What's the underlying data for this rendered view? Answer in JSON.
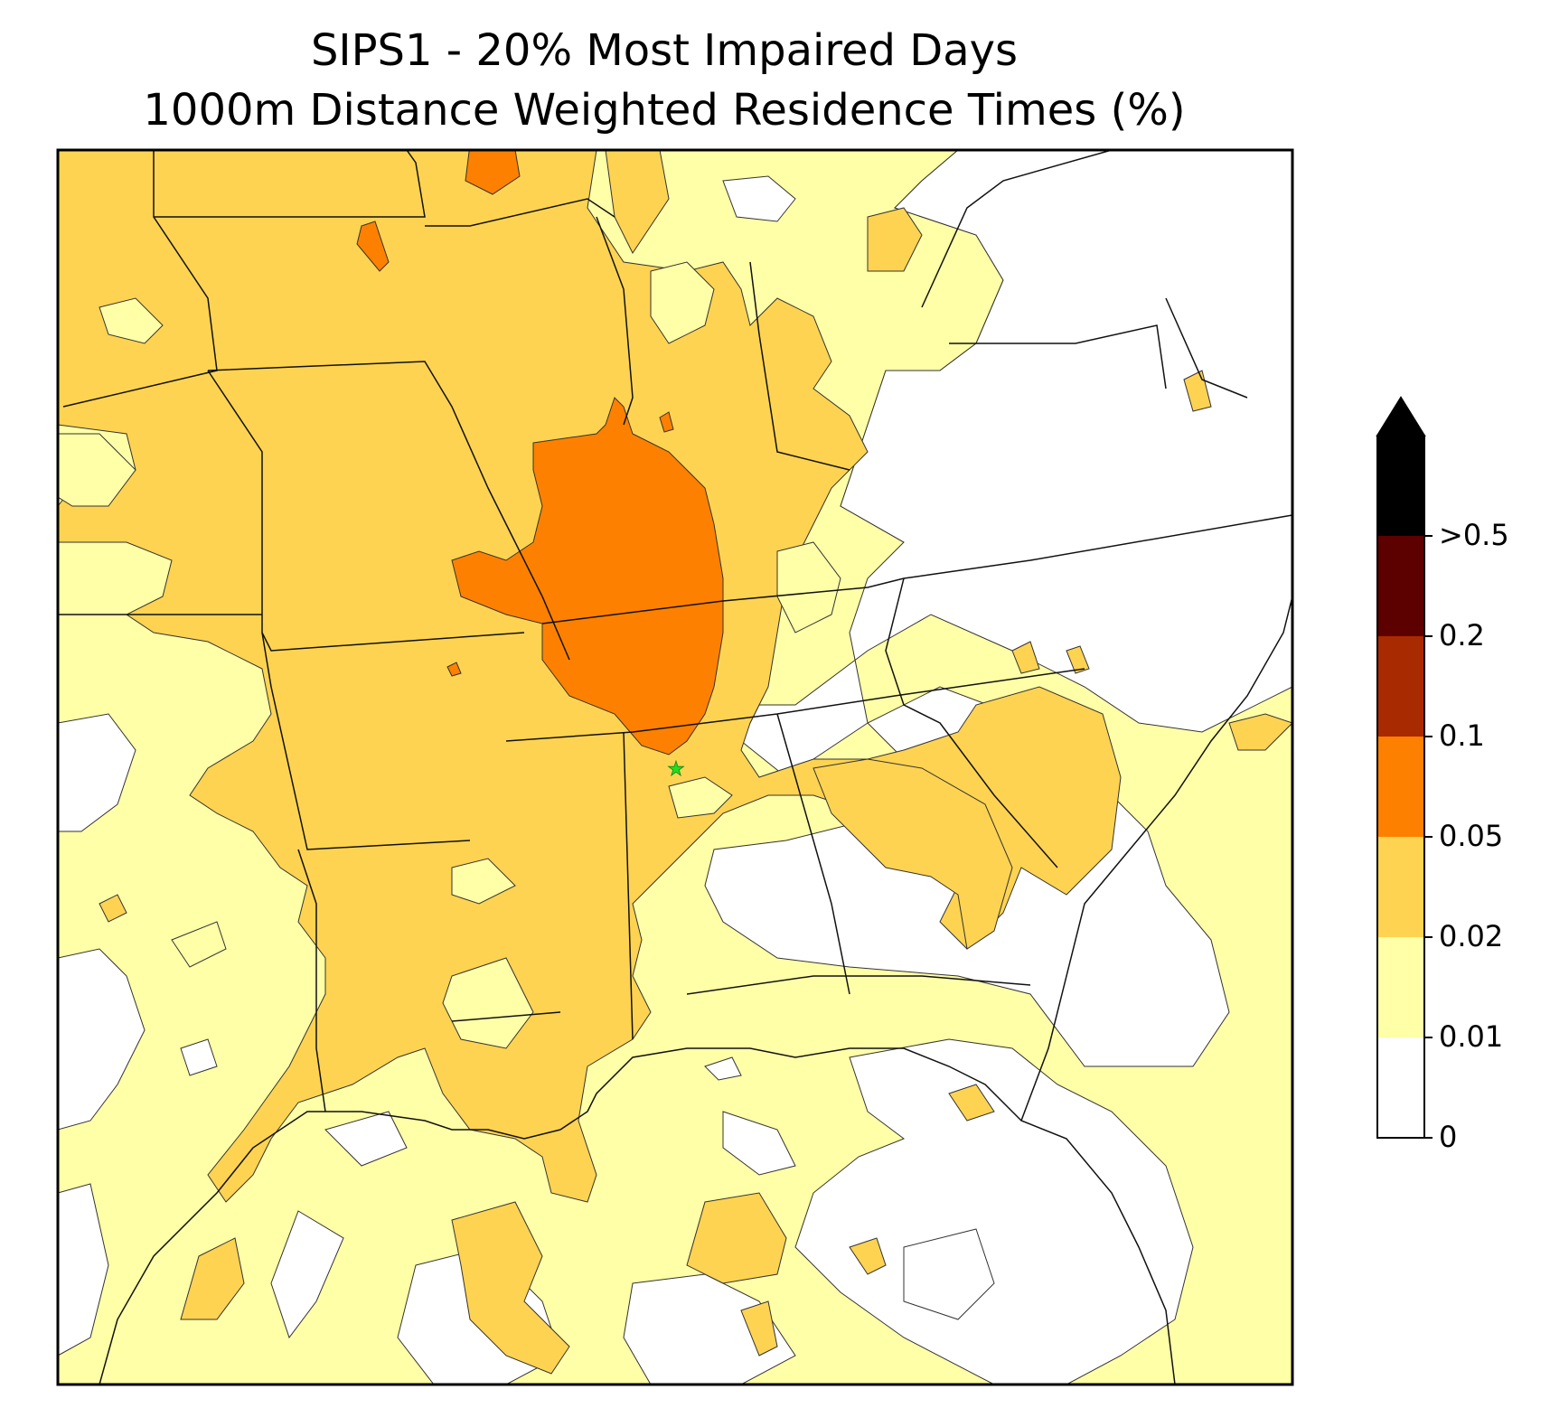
{
  "title_line1": "SIPS1 - 20% Most Impaired Days",
  "title_line2": "1000m Distance Weighted Residence Times (%)",
  "legend": {
    "ticks": [
      "0",
      "0.01",
      "0.02",
      "0.05",
      "0.1",
      "0.2",
      ">0.5"
    ],
    "colors": [
      "#ffffff",
      "#ffffa8",
      "#fed352",
      "#fe8000",
      "#a82a00",
      "#5c0000",
      "#000000"
    ],
    "extend": "max"
  },
  "colors": {
    "level1": "#ffffa8",
    "level2": "#fed352",
    "level3": "#fe8000",
    "site_marker": "#22dd22"
  }
}
